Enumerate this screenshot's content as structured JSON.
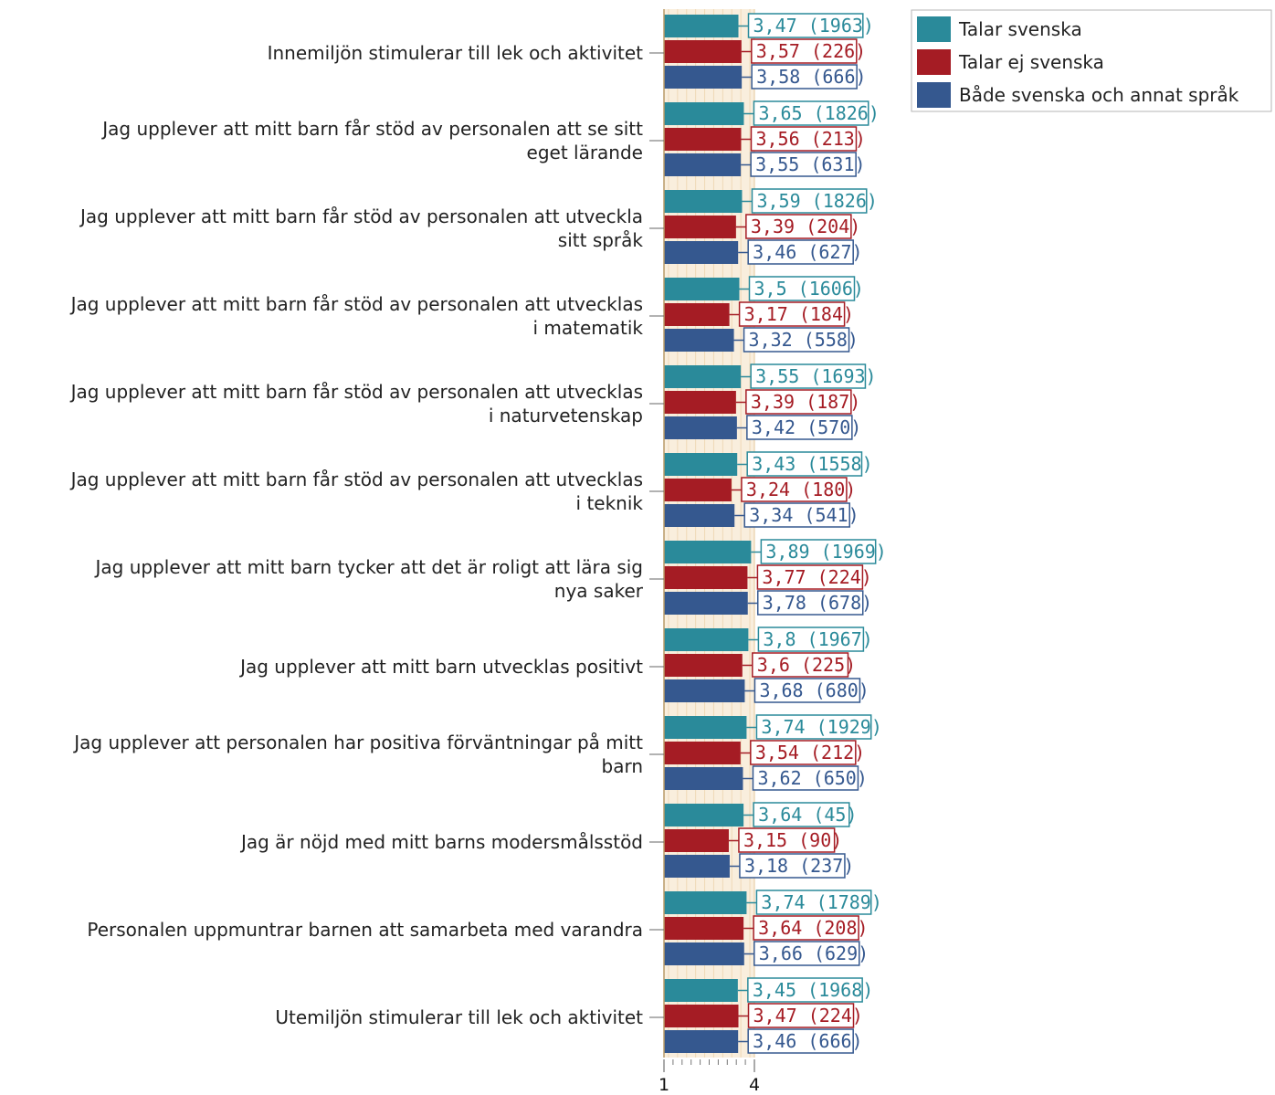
{
  "chart_data": {
    "type": "bar",
    "orientation": "horizontal",
    "categories": [
      "Innemiljön stimulerar till lek och aktivitet",
      "Jag upplever att mitt barn får stöd av personalen att se sitt eget lärande",
      "Jag upplever att mitt barn får stöd av personalen att utveckla sitt språk",
      "Jag upplever att mitt barn får stöd av personalen att utvecklas i matematik",
      "Jag upplever att mitt barn får stöd av personalen att utvecklas i naturvetenskap",
      "Jag upplever att mitt barn får stöd av personalen att utvecklas i teknik",
      "Jag upplever att mitt barn tycker att det är roligt att lära sig nya saker",
      "Jag upplever att mitt barn utvecklas positivt",
      "Jag upplever att personalen har positiva förväntningar på mitt barn",
      "Jag är nöjd med mitt barns modersmålsstöd",
      "Personalen uppmuntrar barnen att samarbeta med varandra",
      "Utemiljön stimulerar till lek och aktivitet"
    ],
    "category_label_lines": [
      [
        "Innemiljön stimulerar till lek och aktivitet"
      ],
      [
        "Jag upplever att mitt barn får stöd av personalen att se sitt",
        "eget lärande"
      ],
      [
        "Jag upplever att mitt barn får stöd av personalen att utveckla",
        "sitt språk"
      ],
      [
        "Jag upplever att mitt barn får stöd av personalen att utvecklas",
        "i matematik"
      ],
      [
        "Jag upplever att mitt barn får stöd av personalen att utvecklas",
        "i naturvetenskap"
      ],
      [
        "Jag upplever att mitt barn får stöd av personalen att utvecklas",
        "i teknik"
      ],
      [
        "Jag upplever att mitt barn tycker att det är roligt att lära sig",
        "nya saker"
      ],
      [
        "Jag upplever att mitt barn utvecklas positivt"
      ],
      [
        "Jag upplever att personalen har positiva förväntningar på mitt",
        "barn"
      ],
      [
        "Jag är nöjd med mitt barns modersmålsstöd"
      ],
      [
        "Personalen uppmuntrar barnen att samarbeta med varandra"
      ],
      [
        "Utemiljön stimulerar till lek och aktivitet"
      ]
    ],
    "series": [
      {
        "name": "Talar svenska",
        "color": "#2a8a9a",
        "values": [
          3.47,
          3.65,
          3.59,
          3.5,
          3.55,
          3.43,
          3.89,
          3.8,
          3.74,
          3.64,
          3.74,
          3.45
        ],
        "labels": [
          "3,47 (1963)",
          "3,65 (1826)",
          "3,59 (1826)",
          "3,5 (1606)",
          "3,55 (1693)",
          "3,43 (1558)",
          "3,89 (1969)",
          "3,8 (1967)",
          "3,74 (1929)",
          "3,64 (45)",
          "3,74 (1789)",
          "3,45 (1968)"
        ]
      },
      {
        "name": "Talar ej svenska",
        "color": "#a51c24",
        "values": [
          3.57,
          3.56,
          3.39,
          3.17,
          3.39,
          3.24,
          3.77,
          3.6,
          3.54,
          3.15,
          3.64,
          3.47
        ],
        "labels": [
          "3,57 (226)",
          "3,56 (213)",
          "3,39 (204)",
          "3,17 (184)",
          "3,39 (187)",
          "3,24 (180)",
          "3,77 (224)",
          "3,6 (225)",
          "3,54 (212)",
          "3,15 (90)",
          "3,64 (208)",
          "3,47 (224)"
        ]
      },
      {
        "name": "Både svenska och annat språk",
        "color": "#35588f",
        "values": [
          3.58,
          3.55,
          3.46,
          3.32,
          3.42,
          3.34,
          3.78,
          3.68,
          3.62,
          3.18,
          3.66,
          3.46
        ],
        "labels": [
          "3,58 (666)",
          "3,55 (631)",
          "3,46 (627)",
          "3,32 (558)",
          "3,42 (570)",
          "3,34 (541)",
          "3,78 (678)",
          "3,68 (680)",
          "3,62 (650)",
          "3,18 (237)",
          "3,66 (629)",
          "3,46 (666)"
        ]
      }
    ],
    "xlim": [
      1,
      4
    ],
    "xticks": [
      1,
      4
    ],
    "xtick_labels": [
      "1",
      "4"
    ],
    "legend_position": "top-right",
    "plot_background": "#f9eedd",
    "grid": true,
    "title": "",
    "xlabel": "",
    "ylabel": ""
  }
}
